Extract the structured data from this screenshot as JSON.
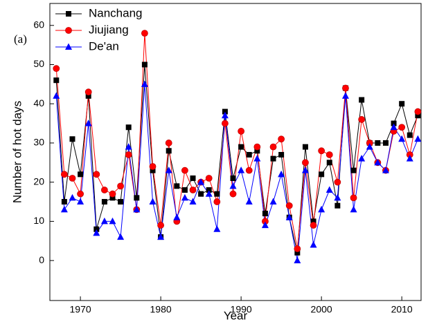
{
  "chart_data": {
    "type": "line",
    "x": [
      1967,
      1968,
      1969,
      1970,
      1971,
      1972,
      1973,
      1974,
      1975,
      1976,
      1977,
      1978,
      1979,
      1980,
      1981,
      1982,
      1983,
      1984,
      1985,
      1986,
      1987,
      1988,
      1989,
      1990,
      1991,
      1992,
      1993,
      1994,
      1995,
      1996,
      1997,
      1998,
      1999,
      2000,
      2001,
      2002,
      2003,
      2004,
      2005,
      2006,
      2007,
      2008,
      2009,
      2010,
      2011,
      2012
    ],
    "series": [
      {
        "name": "Nanchang",
        "color": "#000000",
        "marker": "square",
        "values": [
          46,
          15,
          31,
          22,
          42,
          8,
          15,
          16,
          15,
          34,
          16,
          50,
          23,
          6,
          28,
          19,
          18,
          21,
          17,
          18,
          17,
          38,
          21,
          29,
          27,
          28,
          12,
          26,
          27,
          11,
          2,
          29,
          10,
          22,
          25,
          14,
          44,
          23,
          41,
          30,
          30,
          30,
          35,
          40,
          32,
          37
        ]
      },
      {
        "name": "Jiujiang",
        "color": "#ff0000",
        "marker": "circle",
        "values": [
          49,
          22,
          21,
          17,
          43,
          22,
          18,
          17,
          19,
          27,
          13,
          58,
          24,
          9,
          30,
          10,
          23,
          18,
          20,
          21,
          15,
          35,
          17,
          33,
          23,
          29,
          10,
          29,
          31,
          14,
          3,
          25,
          9,
          28,
          27,
          20,
          44,
          16,
          36,
          30,
          25,
          23,
          33,
          34,
          27,
          38
        ]
      },
      {
        "name": "De'an",
        "color": "#0000ff",
        "marker": "triangle",
        "values": [
          42,
          13,
          16,
          15,
          35,
          7,
          10,
          10,
          6,
          29,
          13,
          45,
          15,
          6,
          23,
          11,
          16,
          15,
          20,
          17,
          8,
          37,
          19,
          23,
          15,
          26,
          9,
          15,
          22,
          11,
          0,
          23,
          4,
          13,
          18,
          16,
          42,
          13,
          26,
          29,
          25,
          23,
          34,
          31,
          26,
          31
        ]
      }
    ],
    "x_label": "Year",
    "y_label": "Number of hot days",
    "annotation": "(a)",
    "xlim": [
      1966.2,
      2012.4
    ],
    "ylim": [
      -10.2,
      65.6
    ],
    "xticks": [
      1970,
      1980,
      1990,
      2000,
      2010
    ],
    "yticks": [
      0,
      10,
      20,
      30,
      40,
      50,
      60
    ],
    "legend": "upper left",
    "grid": false
  }
}
